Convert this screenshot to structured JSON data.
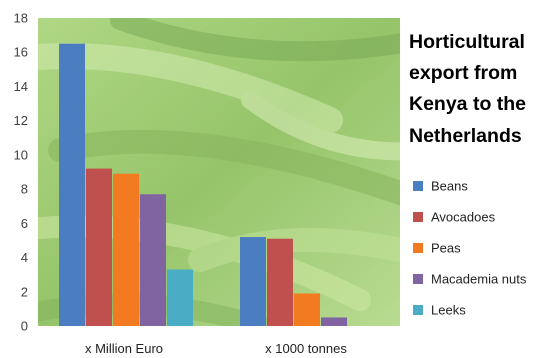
{
  "chart_data": {
    "type": "bar",
    "title_lines": [
      "Horticultural",
      "export from",
      "Kenya to the",
      "Netherlands"
    ],
    "categories": [
      "x Million Euro",
      "x 1000 tonnes"
    ],
    "series": [
      {
        "name": "Beans",
        "values": [
          16.5,
          5.2
        ],
        "color": "#4a7ec0"
      },
      {
        "name": "Avocadoes",
        "values": [
          9.2,
          5.1
        ],
        "color": "#c0504d"
      },
      {
        "name": "Peas",
        "values": [
          8.9,
          1.9
        ],
        "color": "#f27b21"
      },
      {
        "name": "Macademia nuts",
        "values": [
          7.7,
          0.5
        ],
        "color": "#8064a2"
      },
      {
        "name": "Leeks",
        "values": [
          3.3,
          0.0
        ],
        "color": "#4bacc6"
      }
    ],
    "ylim": [
      0,
      18
    ],
    "yticks": [
      0,
      2,
      4,
      6,
      8,
      10,
      12,
      14,
      16,
      18
    ],
    "grid": false,
    "legend_position": "right",
    "background": "green beans photograph"
  }
}
